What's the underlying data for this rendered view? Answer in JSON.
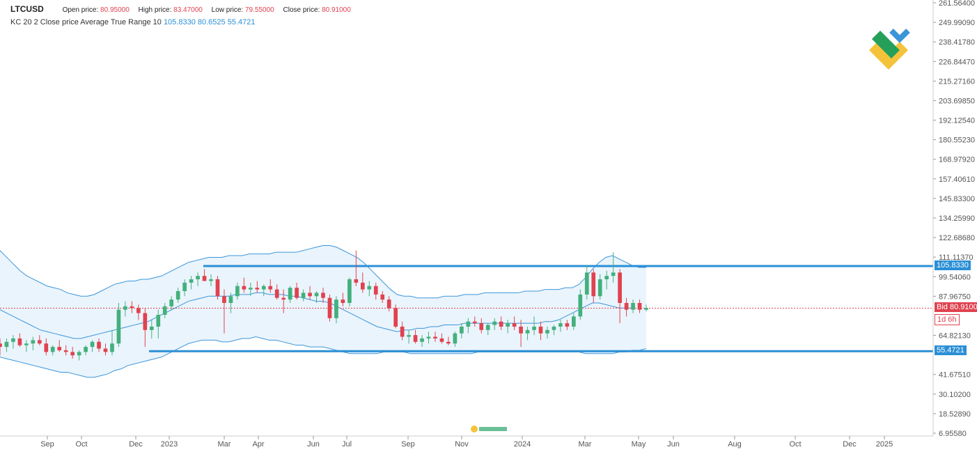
{
  "header": {
    "symbol": "LTCUSD",
    "open_label": "Open price:",
    "open_value": "80.95000",
    "high_label": "High price:",
    "high_value": "83.47000",
    "low_label": "Low price:",
    "low_value": "79.55000",
    "close_label": "Close price:",
    "close_value": "80.91000"
  },
  "indicator": {
    "label": "KC 20 2 Close price Average True Range 10",
    "upper": "105.8330",
    "middle": "80.6525",
    "lower": "55.4721"
  },
  "tags": {
    "upper": "105.8330",
    "bid": "Bid 80.91000",
    "timer": "1d 6h",
    "lower": "55.4721"
  },
  "colors": {
    "up": "#43b07d",
    "down": "#e0424f",
    "channel": "#3b95d9",
    "channel_fill": "#eaf4fc",
    "level": "#2a8fd6",
    "bid": "#e0424f"
  },
  "chart_data": {
    "type": "candlestick",
    "y_ticks": [
      "261.56400",
      "249.99090",
      "238.41780",
      "226.84470",
      "215.27160",
      "203.69850",
      "192.12540",
      "180.55230",
      "168.97920",
      "157.40610",
      "145.83300",
      "134.25990",
      "122.68680",
      "111.11370",
      "99.54060",
      "87.96750",
      "64.82130",
      "41.67510",
      "30.10200",
      "18.52890",
      "6.95580"
    ],
    "y_range": [
      6.9558,
      261.564
    ],
    "x_ticks": [
      "Sep",
      "Oct",
      "Dec",
      "2023",
      "Mar",
      "Apr",
      "Jun",
      "Jul",
      "Sep",
      "Nov",
      "2024",
      "Mar",
      "May",
      "Jun",
      "Aug",
      "Oct",
      "Dec",
      "2025"
    ],
    "horizontal_levels": [
      105.833,
      55.4721
    ],
    "last_price": 80.91,
    "candles": [
      {
        "o": 60,
        "h": 63,
        "l": 53,
        "c": 58
      },
      {
        "o": 58,
        "h": 63,
        "l": 55,
        "c": 61
      },
      {
        "o": 61,
        "h": 65,
        "l": 57,
        "c": 63
      },
      {
        "o": 63,
        "h": 66,
        "l": 58,
        "c": 59
      },
      {
        "o": 59,
        "h": 62,
        "l": 55,
        "c": 60
      },
      {
        "o": 60,
        "h": 64,
        "l": 56,
        "c": 62
      },
      {
        "o": 62,
        "h": 65,
        "l": 59,
        "c": 60
      },
      {
        "o": 60,
        "h": 63,
        "l": 53,
        "c": 55
      },
      {
        "o": 55,
        "h": 59,
        "l": 53,
        "c": 58
      },
      {
        "o": 58,
        "h": 62,
        "l": 55,
        "c": 56
      },
      {
        "o": 56,
        "h": 59,
        "l": 53,
        "c": 55
      },
      {
        "o": 55,
        "h": 58,
        "l": 51,
        "c": 53
      },
      {
        "o": 53,
        "h": 56,
        "l": 50,
        "c": 55
      },
      {
        "o": 55,
        "h": 59,
        "l": 53,
        "c": 58
      },
      {
        "o": 58,
        "h": 62,
        "l": 55,
        "c": 61
      },
      {
        "o": 61,
        "h": 63,
        "l": 55,
        "c": 57
      },
      {
        "o": 57,
        "h": 60,
        "l": 53,
        "c": 55
      },
      {
        "o": 55,
        "h": 68,
        "l": 53,
        "c": 60
      },
      {
        "o": 60,
        "h": 84,
        "l": 58,
        "c": 80
      },
      {
        "o": 80,
        "h": 85,
        "l": 76,
        "c": 82
      },
      {
        "o": 82,
        "h": 85,
        "l": 78,
        "c": 81
      },
      {
        "o": 81,
        "h": 83,
        "l": 74,
        "c": 78
      },
      {
        "o": 78,
        "h": 81,
        "l": 58,
        "c": 68
      },
      {
        "o": 68,
        "h": 74,
        "l": 63,
        "c": 70
      },
      {
        "o": 70,
        "h": 80,
        "l": 63,
        "c": 77
      },
      {
        "o": 77,
        "h": 84,
        "l": 75,
        "c": 82
      },
      {
        "o": 82,
        "h": 88,
        "l": 80,
        "c": 86
      },
      {
        "o": 86,
        "h": 93,
        "l": 84,
        "c": 91
      },
      {
        "o": 91,
        "h": 98,
        "l": 88,
        "c": 96
      },
      {
        "o": 96,
        "h": 100,
        "l": 92,
        "c": 98
      },
      {
        "o": 98,
        "h": 102,
        "l": 94,
        "c": 100
      },
      {
        "o": 100,
        "h": 104,
        "l": 97,
        "c": 97
      },
      {
        "o": 97,
        "h": 101,
        "l": 94,
        "c": 98
      },
      {
        "o": 98,
        "h": 100,
        "l": 86,
        "c": 88
      },
      {
        "o": 88,
        "h": 92,
        "l": 66,
        "c": 84
      },
      {
        "o": 84,
        "h": 90,
        "l": 78,
        "c": 88
      },
      {
        "o": 88,
        "h": 96,
        "l": 86,
        "c": 94
      },
      {
        "o": 94,
        "h": 99,
        "l": 90,
        "c": 92
      },
      {
        "o": 92,
        "h": 96,
        "l": 88,
        "c": 93
      },
      {
        "o": 93,
        "h": 97,
        "l": 90,
        "c": 92
      },
      {
        "o": 92,
        "h": 95,
        "l": 88,
        "c": 94
      },
      {
        "o": 94,
        "h": 98,
        "l": 90,
        "c": 92
      },
      {
        "o": 92,
        "h": 95,
        "l": 86,
        "c": 87
      },
      {
        "o": 87,
        "h": 92,
        "l": 78,
        "c": 86
      },
      {
        "o": 86,
        "h": 94,
        "l": 84,
        "c": 93
      },
      {
        "o": 93,
        "h": 96,
        "l": 86,
        "c": 87
      },
      {
        "o": 87,
        "h": 92,
        "l": 85,
        "c": 90
      },
      {
        "o": 90,
        "h": 94,
        "l": 86,
        "c": 88
      },
      {
        "o": 88,
        "h": 91,
        "l": 84,
        "c": 90
      },
      {
        "o": 90,
        "h": 93,
        "l": 84,
        "c": 87
      },
      {
        "o": 87,
        "h": 89,
        "l": 73,
        "c": 75
      },
      {
        "o": 75,
        "h": 88,
        "l": 72,
        "c": 86
      },
      {
        "o": 86,
        "h": 90,
        "l": 82,
        "c": 84
      },
      {
        "o": 84,
        "h": 99,
        "l": 82,
        "c": 98
      },
      {
        "o": 98,
        "h": 115,
        "l": 94,
        "c": 96
      },
      {
        "o": 96,
        "h": 102,
        "l": 90,
        "c": 92
      },
      {
        "o": 92,
        "h": 97,
        "l": 88,
        "c": 94
      },
      {
        "o": 94,
        "h": 96,
        "l": 86,
        "c": 89
      },
      {
        "o": 89,
        "h": 91,
        "l": 84,
        "c": 86
      },
      {
        "o": 86,
        "h": 88,
        "l": 79,
        "c": 81
      },
      {
        "o": 81,
        "h": 83,
        "l": 69,
        "c": 70
      },
      {
        "o": 70,
        "h": 73,
        "l": 62,
        "c": 64
      },
      {
        "o": 64,
        "h": 68,
        "l": 60,
        "c": 65
      },
      {
        "o": 65,
        "h": 68,
        "l": 60,
        "c": 61
      },
      {
        "o": 61,
        "h": 65,
        "l": 58,
        "c": 63
      },
      {
        "o": 63,
        "h": 67,
        "l": 60,
        "c": 64
      },
      {
        "o": 64,
        "h": 67,
        "l": 61,
        "c": 63
      },
      {
        "o": 63,
        "h": 66,
        "l": 60,
        "c": 61
      },
      {
        "o": 61,
        "h": 64,
        "l": 59,
        "c": 60
      },
      {
        "o": 60,
        "h": 67,
        "l": 58,
        "c": 66
      },
      {
        "o": 66,
        "h": 72,
        "l": 63,
        "c": 70
      },
      {
        "o": 70,
        "h": 75,
        "l": 66,
        "c": 73
      },
      {
        "o": 73,
        "h": 76,
        "l": 70,
        "c": 72
      },
      {
        "o": 72,
        "h": 75,
        "l": 66,
        "c": 68
      },
      {
        "o": 68,
        "h": 72,
        "l": 65,
        "c": 71
      },
      {
        "o": 71,
        "h": 75,
        "l": 68,
        "c": 73
      },
      {
        "o": 73,
        "h": 76,
        "l": 68,
        "c": 70
      },
      {
        "o": 70,
        "h": 74,
        "l": 66,
        "c": 72
      },
      {
        "o": 72,
        "h": 76,
        "l": 68,
        "c": 70
      },
      {
        "o": 70,
        "h": 74,
        "l": 58,
        "c": 66
      },
      {
        "o": 66,
        "h": 70,
        "l": 62,
        "c": 68
      },
      {
        "o": 68,
        "h": 76,
        "l": 65,
        "c": 70
      },
      {
        "o": 70,
        "h": 73,
        "l": 62,
        "c": 66
      },
      {
        "o": 66,
        "h": 70,
        "l": 63,
        "c": 68
      },
      {
        "o": 68,
        "h": 71,
        "l": 65,
        "c": 70
      },
      {
        "o": 70,
        "h": 74,
        "l": 67,
        "c": 72
      },
      {
        "o": 72,
        "h": 74,
        "l": 68,
        "c": 70
      },
      {
        "o": 70,
        "h": 78,
        "l": 68,
        "c": 76
      },
      {
        "o": 76,
        "h": 92,
        "l": 74,
        "c": 89
      },
      {
        "o": 89,
        "h": 106,
        "l": 86,
        "c": 102
      },
      {
        "o": 102,
        "h": 104,
        "l": 84,
        "c": 88
      },
      {
        "o": 88,
        "h": 101,
        "l": 86,
        "c": 98
      },
      {
        "o": 98,
        "h": 103,
        "l": 92,
        "c": 100
      },
      {
        "o": 100,
        "h": 114,
        "l": 96,
        "c": 102
      },
      {
        "o": 102,
        "h": 104,
        "l": 72,
        "c": 84
      },
      {
        "o": 84,
        "h": 87,
        "l": 76,
        "c": 80
      },
      {
        "o": 80,
        "h": 86,
        "l": 78,
        "c": 84
      },
      {
        "o": 84,
        "h": 86,
        "l": 78,
        "c": 80
      },
      {
        "o": 80,
        "h": 83,
        "l": 79,
        "c": 81
      }
    ],
    "keltner": {
      "upper": [
        115,
        111,
        107,
        103,
        100,
        98,
        96,
        94,
        93,
        92,
        90,
        89,
        88,
        88,
        89,
        91,
        93,
        95,
        96,
        97,
        97,
        98,
        98,
        99,
        100,
        102,
        104,
        106,
        108,
        109,
        110,
        111,
        111,
        111,
        112,
        112,
        112,
        113,
        113,
        113,
        113,
        114,
        114,
        114,
        114,
        115,
        116,
        117,
        118,
        118,
        117,
        115,
        113,
        111,
        108,
        104,
        100,
        96,
        92,
        89,
        88,
        88,
        87,
        87,
        87,
        87,
        88,
        88,
        88,
        89,
        89,
        89,
        90,
        90,
        90,
        90,
        90,
        90,
        91,
        91,
        91,
        92,
        92,
        92,
        93,
        93,
        95,
        99,
        104,
        108,
        111,
        112,
        110,
        108,
        106,
        105,
        105
      ],
      "middle": [
        80,
        78,
        76,
        74,
        72,
        70,
        68,
        67,
        66,
        65,
        64,
        63,
        63,
        64,
        65,
        66,
        67,
        68,
        69,
        70,
        71,
        72,
        73,
        75,
        77,
        79,
        81,
        83,
        85,
        86,
        87,
        88,
        88,
        88,
        88,
        89,
        89,
        89,
        90,
        90,
        89,
        89,
        89,
        88,
        88,
        87,
        86,
        85,
        85,
        84,
        82,
        80,
        78,
        76,
        74,
        72,
        70,
        69,
        68,
        67,
        68,
        68,
        69,
        69,
        70,
        70,
        71,
        71,
        71,
        72,
        72,
        72,
        72,
        72,
        72,
        72,
        72,
        72,
        72,
        72,
        72,
        73,
        73,
        74,
        76,
        78,
        80,
        82,
        84,
        84,
        83,
        82,
        81,
        81,
        81
      ],
      "lower": [
        52,
        51,
        50,
        49,
        48,
        47,
        46,
        45,
        44,
        43,
        43,
        42,
        41,
        40,
        40,
        41,
        42,
        44,
        45,
        47,
        48,
        49,
        50,
        51,
        52,
        54,
        56,
        58,
        60,
        61,
        62,
        62,
        62,
        61,
        61,
        62,
        63,
        63,
        64,
        63,
        62,
        62,
        61,
        60,
        59,
        59,
        58,
        58,
        58,
        57,
        56,
        55,
        54,
        54,
        54,
        54,
        54,
        55,
        55,
        55,
        55,
        54,
        54,
        54,
        54,
        54,
        54,
        54,
        54,
        54,
        54,
        55,
        55,
        55,
        55,
        55,
        55,
        55,
        55,
        55,
        55,
        55,
        55,
        55,
        55,
        55,
        55,
        54,
        54,
        54,
        54,
        54,
        55,
        55,
        56,
        56,
        57
      ]
    }
  }
}
